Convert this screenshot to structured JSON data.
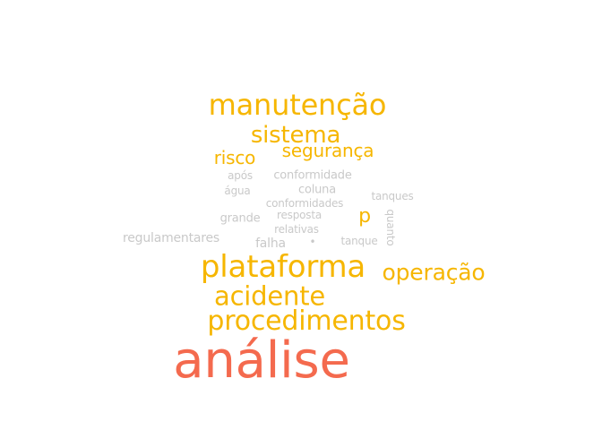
{
  "colors": {
    "primary": "#f46a4e",
    "secondary": "#f6b600",
    "tertiary": "#c9c9c9"
  },
  "words": {
    "analise": "análise",
    "plataforma": "plataforma",
    "procedimentos": "procedimentos",
    "manutencao": "manutenção",
    "acidente": "acidente",
    "operacao": "operação",
    "sistema": "sistema",
    "seguranca": "segurança",
    "risco": "risco",
    "p": "p",
    "conformidade": "conformidade",
    "apos": "após",
    "agua": "água",
    "coluna": "coluna",
    "tanques": "tanques",
    "conformidades": "conformidades",
    "grande": "grande",
    "resposta": "resposta",
    "quanto": "quanto",
    "relativas": "relativas",
    "regulamentares": "regulamentares",
    "falha": "falha",
    "dot": "•",
    "tanque": "tanque"
  }
}
